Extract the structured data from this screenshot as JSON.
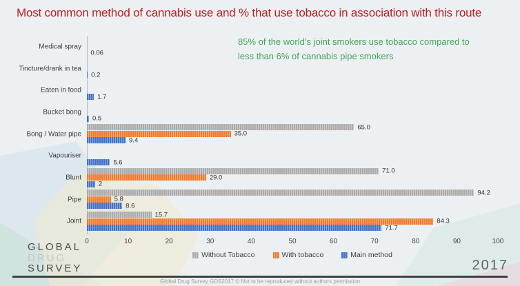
{
  "slide": {
    "title": "Most common method of cannabis use and % that use tobacco in association with this route",
    "title_color": "#BE1E24",
    "annotation": {
      "line1": "85% of the world’s joint smokers use tobacco compared to",
      "line2": "less than 6% of cannabis pipe smokers",
      "color": "#46A45A"
    },
    "logo": {
      "line1": "GLOBAL",
      "line2": "DRUG",
      "line3": "SURVEY"
    },
    "year": "2017",
    "footer": "Global Drug Survey GDS2017 © Not to be reproduced without authors permission"
  },
  "chart_data": {
    "type": "bar",
    "orientation": "horizontal",
    "title": "",
    "xlabel": "",
    "ylabel": "",
    "xlim": [
      0,
      100
    ],
    "xticks": [
      0,
      10,
      20,
      30,
      40,
      50,
      60,
      70,
      80,
      90,
      100
    ],
    "grid": false,
    "legend_position": "bottom",
    "categories": [
      "Medical spray",
      "Tincture/drank in tea",
      "Eaten in food",
      "Bucket bong",
      "Bong / Water pipe",
      "Vapouriser",
      "Blunt",
      "Pipe",
      "Joint"
    ],
    "series": [
      {
        "name": "Without Tobacco",
        "color": "#ACACAC",
        "color_light": "#CBCBCB",
        "values": [
          null,
          null,
          null,
          null,
          65.0,
          null,
          71.0,
          94.2,
          15.7
        ],
        "labels": [
          "",
          "",
          "",
          "",
          "65.0",
          "",
          "71.0",
          "94.2",
          "15.7"
        ]
      },
      {
        "name": "With tobacco",
        "color": "#ED7D31",
        "color_light": "#F5AA79",
        "values": [
          null,
          null,
          null,
          null,
          35.0,
          null,
          29.0,
          5.8,
          84.3
        ],
        "labels": [
          "",
          "",
          "",
          "",
          "35.0",
          "",
          "29.0",
          "5.8",
          "84.3"
        ]
      },
      {
        "name": "Main method",
        "color": "#4472C4",
        "color_light": "#8FA8DE",
        "values": [
          0.06,
          0.2,
          1.7,
          0.5,
          9.4,
          5.6,
          2,
          8.6,
          71.7
        ],
        "labels": [
          "0.06",
          "0.2",
          "1.7",
          "0.5",
          "9.4",
          "5.6",
          "2",
          "8.6",
          "71.7"
        ]
      }
    ]
  }
}
